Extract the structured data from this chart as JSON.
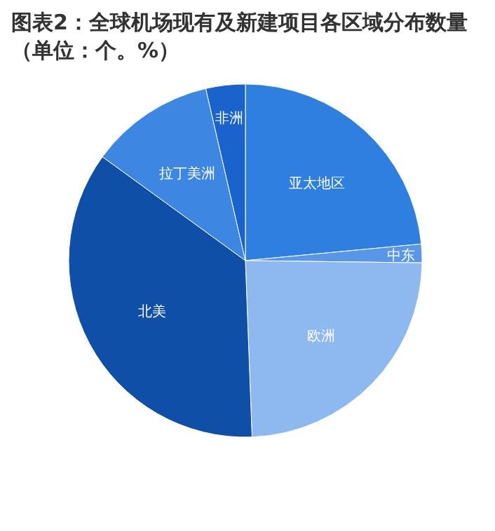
{
  "chart_data": {
    "type": "pie",
    "title": "图表2：全球机场现有及新建项目各区域分布数量（单位：个。%）",
    "categories": [
      "亚太地区",
      "中东",
      "欧洲",
      "北美",
      "拉丁美洲",
      "非洲"
    ],
    "values": [
      23.5,
      1.7,
      24.2,
      35.6,
      11.4,
      3.6
    ],
    "colors": [
      "#2f7fe0",
      "#5a96e8",
      "#8db8f0",
      "#0f4fa8",
      "#3d86e2",
      "#1b63cc"
    ]
  }
}
